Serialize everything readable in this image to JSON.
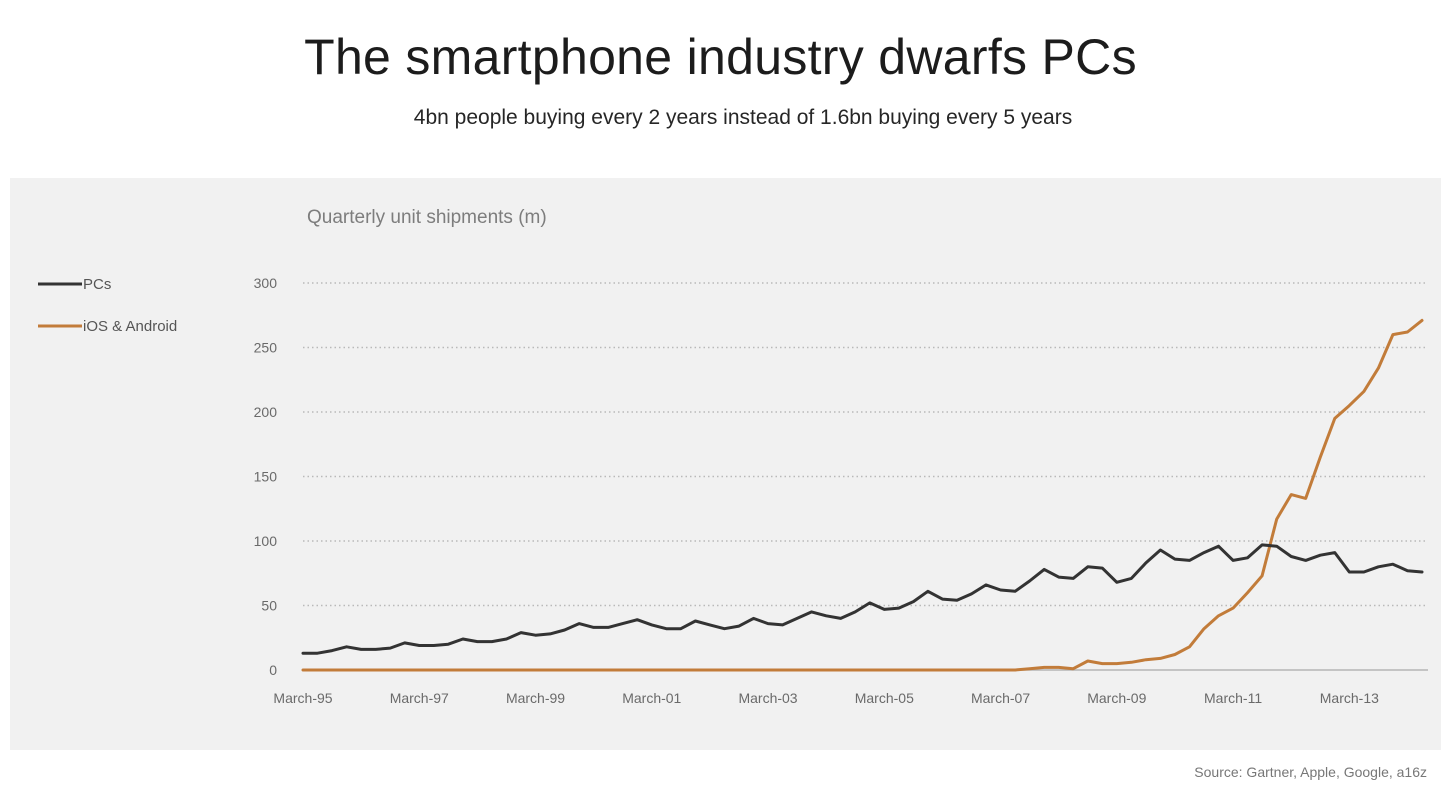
{
  "title": "The smartphone industry dwarfs PCs",
  "subtitle": "4bn people buying every 2 years instead of 1.6bn buying every 5 years",
  "source": "Source: Gartner, Apple, Google, a16z",
  "chart_data": {
    "type": "line",
    "title": "Quarterly unit shipments (m)",
    "xlabel": "",
    "ylabel": "",
    "x_ticks": [
      "March-95",
      "March-97",
      "March-99",
      "March-01",
      "March-03",
      "March-05",
      "March-07",
      "March-09",
      "March-11",
      "March-13"
    ],
    "y_ticks": [
      0,
      50,
      100,
      150,
      200,
      250,
      300
    ],
    "ylim": [
      0,
      300
    ],
    "grid": "horizontal dotted",
    "legend_placement": "top-left",
    "series": [
      {
        "name": "PCs",
        "color": "#333333",
        "values": [
          13,
          13,
          15,
          18,
          16,
          16,
          17,
          21,
          19,
          19,
          20,
          24,
          22,
          22,
          24,
          29,
          27,
          28,
          31,
          36,
          33,
          33,
          36,
          39,
          35,
          32,
          32,
          38,
          35,
          32,
          34,
          40,
          36,
          35,
          40,
          45,
          42,
          40,
          45,
          52,
          47,
          48,
          53,
          61,
          55,
          54,
          59,
          66,
          62,
          61,
          69,
          78,
          72,
          71,
          80,
          79,
          68,
          71,
          83,
          93,
          86,
          85,
          91,
          96,
          85,
          87,
          97,
          96,
          88,
          85,
          89,
          91,
          76,
          76,
          80,
          82,
          77,
          76
        ]
      },
      {
        "name": "iOS & Android",
        "color": "#c27c3a",
        "values": [
          0,
          0,
          0,
          0,
          0,
          0,
          0,
          0,
          0,
          0,
          0,
          0,
          0,
          0,
          0,
          0,
          0,
          0,
          0,
          0,
          0,
          0,
          0,
          0,
          0,
          0,
          0,
          0,
          0,
          0,
          0,
          0,
          0,
          0,
          0,
          0,
          0,
          0,
          0,
          0,
          0,
          0,
          0,
          0,
          0,
          0,
          0,
          0,
          0,
          0,
          1,
          2,
          2,
          1,
          7,
          5,
          5,
          6,
          8,
          9,
          12,
          18,
          32,
          42,
          48,
          60,
          73,
          117,
          136,
          133,
          165,
          195,
          205,
          216,
          234,
          260,
          262,
          271
        ]
      }
    ]
  }
}
